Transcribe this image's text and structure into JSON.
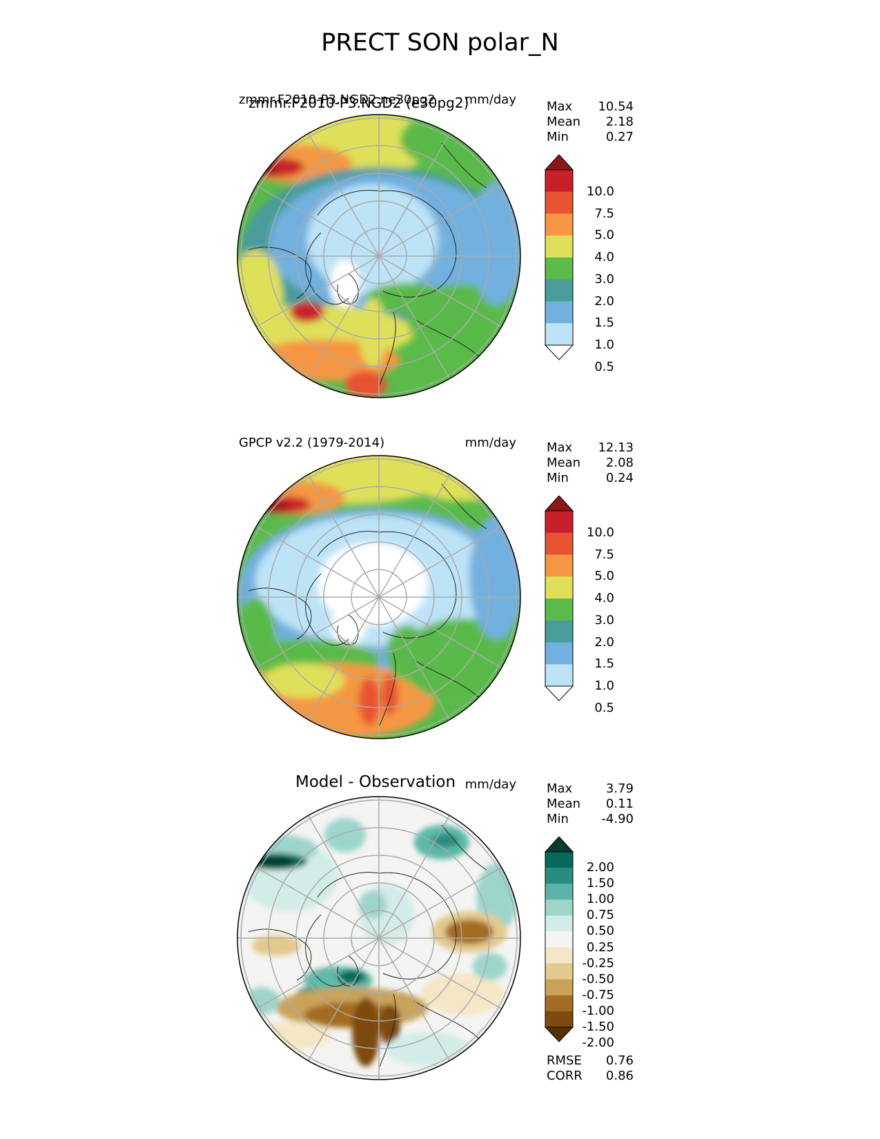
{
  "title": "PRECT SON polar_N",
  "panels": [
    {
      "id": "test",
      "title_left": "zmmr.F2010-P3.NGD2.ne30pg2",
      "title_left_overlap": "zmmr.F2010-P3.NGD2 (e30pg2)",
      "title_right": "mm/day",
      "stats": [
        {
          "label": "Max",
          "value": "10.54"
        },
        {
          "label": "Mean",
          "value": "2.18"
        },
        {
          "label": "Min",
          "value": "0.27"
        }
      ],
      "colorbar": {
        "labels": [
          "10.0",
          "7.5",
          "5.0",
          "4.0",
          "3.0",
          "2.0",
          "1.5",
          "1.0",
          "0.5"
        ],
        "colors": [
          "#8e1518",
          "#c8202a",
          "#e85333",
          "#f59742",
          "#dfe05a",
          "#5aba4a",
          "#489c9a",
          "#72b0df",
          "#bde3f7",
          "#ffffff"
        ]
      }
    },
    {
      "id": "reference",
      "title_left": "GPCP v2.2 (1979-2014)",
      "title_right": "mm/day",
      "stats": [
        {
          "label": "Max",
          "value": "12.13"
        },
        {
          "label": "Mean",
          "value": "2.08"
        },
        {
          "label": "Min",
          "value": "0.24"
        }
      ],
      "colorbar": {
        "labels": [
          "10.0",
          "7.5",
          "5.0",
          "4.0",
          "3.0",
          "2.0",
          "1.5",
          "1.0",
          "0.5"
        ],
        "colors": [
          "#8e1518",
          "#c8202a",
          "#e85333",
          "#f59742",
          "#dfe05a",
          "#5aba4a",
          "#489c9a",
          "#72b0df",
          "#bde3f7",
          "#ffffff"
        ]
      }
    },
    {
      "id": "diff",
      "title_center": "Model - Observation",
      "title_right": "mm/day",
      "stats": [
        {
          "label": "Max",
          "value": "3.79"
        },
        {
          "label": "Mean",
          "value": "0.11"
        },
        {
          "label": "Min",
          "value": "-4.90"
        }
      ],
      "colorbar": {
        "labels": [
          "2.00",
          "1.50",
          "1.00",
          "0.75",
          "0.50",
          "0.25",
          "-0.25",
          "-0.50",
          "-0.75",
          "-1.00",
          "-1.50",
          "-2.00"
        ],
        "colors": [
          "#053c2f",
          "#056a5c",
          "#2a8c7e",
          "#5db3a7",
          "#9dd5cb",
          "#d3ece7",
          "#f4f4f2",
          "#f5e7c6",
          "#e4c98d",
          "#c9a35a",
          "#a46c24",
          "#7d4a0f",
          "#543005"
        ]
      },
      "metrics": [
        {
          "label": "RMSE",
          "value": "0.76"
        },
        {
          "label": "CORR",
          "value": "0.86"
        }
      ]
    }
  ]
}
